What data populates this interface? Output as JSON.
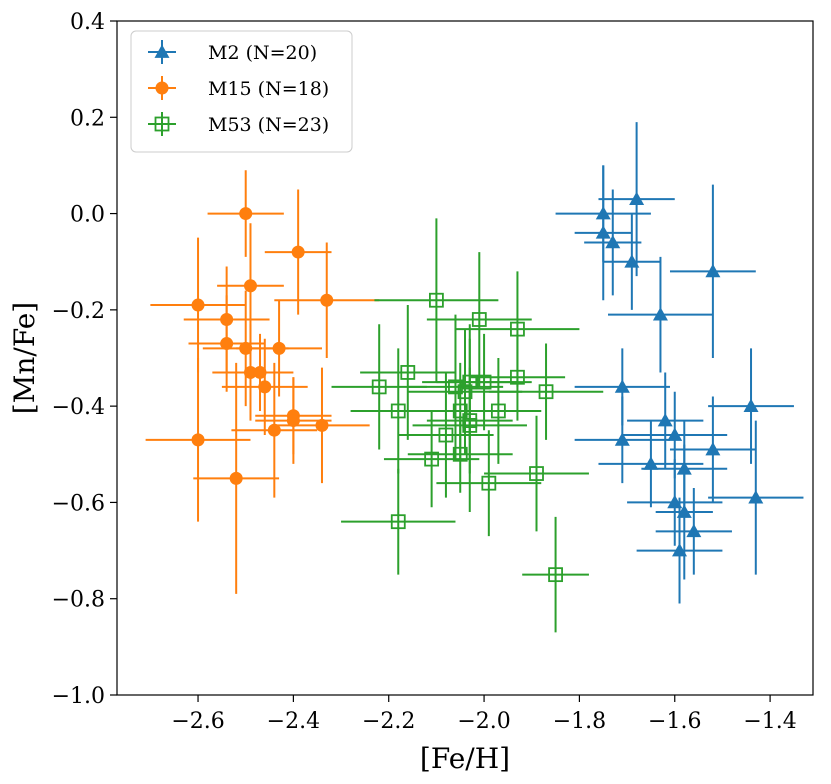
{
  "chart_data": {
    "type": "scatter",
    "title": "",
    "xlabel": "[Fe/H]",
    "ylabel": "[Mn/Fe]",
    "xlim": [
      -2.77,
      -1.31
    ],
    "ylim": [
      -1.0,
      0.4
    ],
    "xticks": [
      -2.6,
      -2.4,
      -2.2,
      -2.0,
      -1.8,
      -1.6,
      -1.4
    ],
    "xtick_labels": [
      "−2.6",
      "−2.4",
      "−2.2",
      "−2.0",
      "−1.8",
      "−1.6",
      "−1.4"
    ],
    "yticks": [
      -1.0,
      -0.8,
      -0.6,
      -0.4,
      -0.2,
      0.0,
      0.2,
      0.4
    ],
    "ytick_labels": [
      "−1.0",
      "−0.8",
      "−0.6",
      "−0.4",
      "−0.2",
      "0.0",
      "0.2",
      "0.4"
    ],
    "grid": false,
    "legend_position": "top-left",
    "series": [
      {
        "name": "M2 (N=20)",
        "color": "#1f77b4",
        "marker": "triangle",
        "points": [
          {
            "x": -1.75,
            "y": 0.0,
            "xerr": 0.1,
            "yerr": 0.1
          },
          {
            "x": -1.68,
            "y": 0.03,
            "xerr": 0.08,
            "yerr": 0.16
          },
          {
            "x": -1.75,
            "y": -0.04,
            "xerr": 0.06,
            "yerr": 0.14
          },
          {
            "x": -1.73,
            "y": -0.06,
            "xerr": 0.06,
            "yerr": 0.11
          },
          {
            "x": -1.69,
            "y": -0.1,
            "xerr": 0.06,
            "yerr": 0.1
          },
          {
            "x": -1.52,
            "y": -0.12,
            "xerr": 0.09,
            "yerr": 0.18
          },
          {
            "x": -1.63,
            "y": -0.21,
            "xerr": 0.11,
            "yerr": 0.12
          },
          {
            "x": -1.71,
            "y": -0.36,
            "xerr": 0.1,
            "yerr": 0.08
          },
          {
            "x": -1.44,
            "y": -0.4,
            "xerr": 0.09,
            "yerr": 0.12
          },
          {
            "x": -1.62,
            "y": -0.43,
            "xerr": 0.08,
            "yerr": 0.1
          },
          {
            "x": -1.6,
            "y": -0.46,
            "xerr": 0.11,
            "yerr": 0.09
          },
          {
            "x": -1.71,
            "y": -0.47,
            "xerr": 0.1,
            "yerr": 0.09
          },
          {
            "x": -1.52,
            "y": -0.49,
            "xerr": 0.09,
            "yerr": 0.11
          },
          {
            "x": -1.65,
            "y": -0.52,
            "xerr": 0.11,
            "yerr": 0.09
          },
          {
            "x": -1.58,
            "y": -0.53,
            "xerr": 0.09,
            "yerr": 0.1
          },
          {
            "x": -1.43,
            "y": -0.59,
            "xerr": 0.1,
            "yerr": 0.16
          },
          {
            "x": -1.6,
            "y": -0.6,
            "xerr": 0.1,
            "yerr": 0.09
          },
          {
            "x": -1.58,
            "y": -0.62,
            "xerr": 0.06,
            "yerr": 0.14
          },
          {
            "x": -1.56,
            "y": -0.66,
            "xerr": 0.08,
            "yerr": 0.09
          },
          {
            "x": -1.59,
            "y": -0.7,
            "xerr": 0.09,
            "yerr": 0.11
          }
        ]
      },
      {
        "name": "M15 (N=18)",
        "color": "#ff7f0e",
        "marker": "circle",
        "points": [
          {
            "x": -2.5,
            "y": 0.0,
            "xerr": 0.08,
            "yerr": 0.09
          },
          {
            "x": -2.39,
            "y": -0.08,
            "xerr": 0.07,
            "yerr": 0.13
          },
          {
            "x": -2.49,
            "y": -0.15,
            "xerr": 0.07,
            "yerr": 0.13
          },
          {
            "x": -2.33,
            "y": -0.18,
            "xerr": 0.11,
            "yerr": 0.12
          },
          {
            "x": -2.6,
            "y": -0.19,
            "xerr": 0.1,
            "yerr": 0.14
          },
          {
            "x": -2.54,
            "y": -0.22,
            "xerr": 0.09,
            "yerr": 0.11
          },
          {
            "x": -2.54,
            "y": -0.27,
            "xerr": 0.08,
            "yerr": 0.1
          },
          {
            "x": -2.5,
            "y": -0.28,
            "xerr": 0.09,
            "yerr": 0.12
          },
          {
            "x": -2.43,
            "y": -0.28,
            "xerr": 0.09,
            "yerr": 0.1
          },
          {
            "x": -2.49,
            "y": -0.33,
            "xerr": 0.08,
            "yerr": 0.1
          },
          {
            "x": -2.47,
            "y": -0.33,
            "xerr": 0.07,
            "yerr": 0.08
          },
          {
            "x": -2.46,
            "y": -0.36,
            "xerr": 0.09,
            "yerr": 0.1
          },
          {
            "x": -2.4,
            "y": -0.42,
            "xerr": 0.08,
            "yerr": 0.08
          },
          {
            "x": -2.4,
            "y": -0.43,
            "xerr": 0.08,
            "yerr": 0.09
          },
          {
            "x": -2.34,
            "y": -0.44,
            "xerr": 0.1,
            "yerr": 0.12
          },
          {
            "x": -2.44,
            "y": -0.45,
            "xerr": 0.09,
            "yerr": 0.14
          },
          {
            "x": -2.6,
            "y": -0.47,
            "xerr": 0.11,
            "yerr": 0.17
          },
          {
            "x": -2.52,
            "y": -0.55,
            "xerr": 0.09,
            "yerr": 0.24
          }
        ]
      },
      {
        "name": "M53 (N=23)",
        "color": "#2ca02c",
        "marker": "square-open",
        "points": [
          {
            "x": -2.1,
            "y": -0.18,
            "xerr": 0.13,
            "yerr": 0.17
          },
          {
            "x": -2.01,
            "y": -0.22,
            "xerr": 0.11,
            "yerr": 0.14
          },
          {
            "x": -1.93,
            "y": -0.24,
            "xerr": 0.13,
            "yerr": 0.12
          },
          {
            "x": -2.16,
            "y": -0.33,
            "xerr": 0.1,
            "yerr": 0.14
          },
          {
            "x": -1.93,
            "y": -0.34,
            "xerr": 0.1,
            "yerr": 0.09
          },
          {
            "x": -2.22,
            "y": -0.36,
            "xerr": 0.1,
            "yerr": 0.13
          },
          {
            "x": -2.06,
            "y": -0.36,
            "xerr": 0.1,
            "yerr": 0.15
          },
          {
            "x": -2.03,
            "y": -0.35,
            "xerr": 0.1,
            "yerr": 0.12
          },
          {
            "x": -2.0,
            "y": -0.35,
            "xerr": 0.1,
            "yerr": 0.1
          },
          {
            "x": -2.04,
            "y": -0.37,
            "xerr": 0.12,
            "yerr": 0.13
          },
          {
            "x": -1.87,
            "y": -0.37,
            "xerr": 0.12,
            "yerr": 0.1
          },
          {
            "x": -2.18,
            "y": -0.41,
            "xerr": 0.1,
            "yerr": 0.13
          },
          {
            "x": -1.97,
            "y": -0.41,
            "xerr": 0.09,
            "yerr": 0.11
          },
          {
            "x": -2.05,
            "y": -0.41,
            "xerr": 0.1,
            "yerr": 0.1
          },
          {
            "x": -2.03,
            "y": -0.43,
            "xerr": 0.09,
            "yerr": 0.11
          },
          {
            "x": -2.08,
            "y": -0.46,
            "xerr": 0.1,
            "yerr": 0.13
          },
          {
            "x": -2.05,
            "y": -0.5,
            "xerr": 0.11,
            "yerr": 0.08
          },
          {
            "x": -2.11,
            "y": -0.51,
            "xerr": 0.1,
            "yerr": 0.1
          },
          {
            "x": -1.89,
            "y": -0.54,
            "xerr": 0.11,
            "yerr": 0.12
          },
          {
            "x": -1.99,
            "y": -0.56,
            "xerr": 0.11,
            "yerr": 0.11
          },
          {
            "x": -2.18,
            "y": -0.64,
            "xerr": 0.12,
            "yerr": 0.11
          },
          {
            "x": -1.85,
            "y": -0.75,
            "xerr": 0.07,
            "yerr": 0.12
          },
          {
            "x": -2.03,
            "y": -0.44,
            "xerr": 0.12,
            "yerr": 0.18
          }
        ]
      }
    ]
  }
}
